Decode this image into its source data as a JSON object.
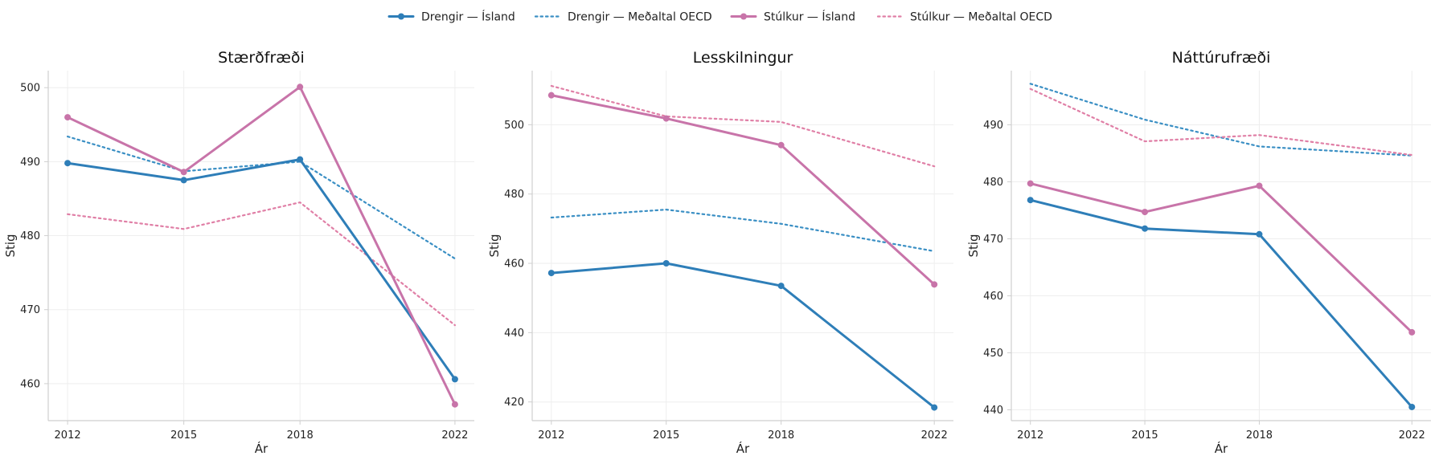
{
  "legend": [
    {
      "label": "Drengir — Ísland",
      "color": "#2E7EB8",
      "style": "solid"
    },
    {
      "label": "Drengir — Meðaltal OECD",
      "color": "#3A8FC4",
      "style": "dotted"
    },
    {
      "label": "Stúlkur — Ísland",
      "color": "#C874A9",
      "style": "solid"
    },
    {
      "label": "Stúlkur — Meðaltal OECD",
      "color": "#E07FA6",
      "style": "dotted"
    }
  ],
  "chart_data": [
    {
      "type": "line",
      "title": "Stærðfræði",
      "xlabel": "Ár",
      "ylabel": "Stig",
      "x": [
        2012,
        2015,
        2018,
        2022
      ],
      "xlim": [
        2011.5,
        2022.5
      ],
      "ylim": [
        455.0,
        502.3
      ],
      "yticks": [
        460,
        470,
        480,
        490,
        500
      ],
      "grid": true,
      "legend_position": "top-center",
      "series": [
        {
          "name": "Drengir — Ísland",
          "color": "#2E7EB8",
          "style": "solid",
          "values": [
            489.8,
            487.5,
            490.3,
            460.6
          ]
        },
        {
          "name": "Drengir — Meðaltal OECD",
          "color": "#3A8FC4",
          "style": "dotted",
          "values": [
            493.4,
            488.7,
            490.0,
            476.9
          ]
        },
        {
          "name": "Stúlkur — Ísland",
          "color": "#C874A9",
          "style": "solid",
          "values": [
            496.0,
            488.6,
            500.1,
            457.2
          ]
        },
        {
          "name": "Stúlkur — Meðaltal OECD",
          "color": "#E07FA6",
          "style": "dotted",
          "values": [
            482.9,
            480.9,
            484.5,
            467.9
          ]
        }
      ]
    },
    {
      "type": "line",
      "title": "Lesskilningur",
      "xlabel": "Ár",
      "ylabel": "Stig",
      "x": [
        2012,
        2015,
        2018,
        2022
      ],
      "xlim": [
        2011.5,
        2022.5
      ],
      "ylim": [
        414.6,
        515.6
      ],
      "yticks": [
        420,
        440,
        460,
        480,
        500
      ],
      "grid": true,
      "legend_position": "top-center",
      "series": [
        {
          "name": "Drengir — Ísland",
          "color": "#2E7EB8",
          "style": "solid",
          "values": [
            457.2,
            460.0,
            453.5,
            418.4
          ]
        },
        {
          "name": "Drengir — Meðaltal OECD",
          "color": "#3A8FC4",
          "style": "dotted",
          "values": [
            473.2,
            475.5,
            471.4,
            463.5
          ]
        },
        {
          "name": "Stúlkur — Ísland",
          "color": "#C874A9",
          "style": "solid",
          "values": [
            508.5,
            501.8,
            494.1,
            453.9
          ]
        },
        {
          "name": "Stúlkur — Meðaltal OECD",
          "color": "#E07FA6",
          "style": "dotted",
          "values": [
            511.2,
            502.4,
            500.8,
            488.0
          ]
        }
      ]
    },
    {
      "type": "line",
      "title": "Náttúrufræði",
      "xlabel": "Ár",
      "ylabel": "Stig",
      "x": [
        2012,
        2015,
        2018,
        2022
      ],
      "xlim": [
        2011.5,
        2022.5
      ],
      "ylim": [
        438.1,
        499.5
      ],
      "yticks": [
        440,
        450,
        460,
        470,
        480,
        490
      ],
      "grid": true,
      "legend_position": "top-center",
      "series": [
        {
          "name": "Drengir — Ísland",
          "color": "#2E7EB8",
          "style": "solid",
          "values": [
            476.8,
            471.8,
            470.8,
            440.5
          ]
        },
        {
          "name": "Drengir — Meðaltal OECD",
          "color": "#3A8FC4",
          "style": "dotted",
          "values": [
            497.2,
            490.9,
            486.2,
            484.6
          ]
        },
        {
          "name": "Stúlkur — Ísland",
          "color": "#C874A9",
          "style": "solid",
          "values": [
            479.7,
            474.7,
            479.3,
            453.6
          ]
        },
        {
          "name": "Stúlkur — Meðaltal OECD",
          "color": "#E07FA6",
          "style": "dotted",
          "values": [
            496.3,
            487.1,
            488.2,
            484.7
          ]
        }
      ]
    }
  ]
}
